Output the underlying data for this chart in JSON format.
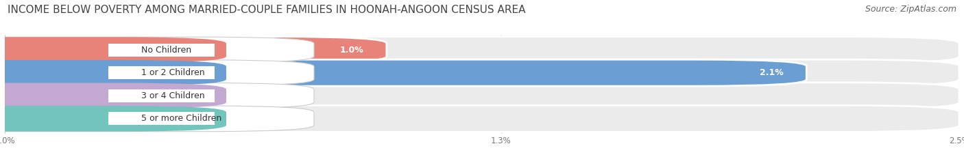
{
  "title": "INCOME BELOW POVERTY AMONG MARRIED-COUPLE FAMILIES IN HOONAH-ANGOON CENSUS AREA",
  "source": "Source: ZipAtlas.com",
  "categories": [
    "No Children",
    "1 or 2 Children",
    "3 or 4 Children",
    "5 or more Children"
  ],
  "values": [
    1.0,
    2.1,
    0.0,
    0.0
  ],
  "bar_colors": [
    "#e8837a",
    "#6b9fd4",
    "#c3a8d1",
    "#72c5bc"
  ],
  "xlim": [
    0,
    2.5
  ],
  "xticks": [
    0.0,
    1.3,
    2.5
  ],
  "xtick_labels": [
    "0.0%",
    "1.3%",
    "2.5%"
  ],
  "bg_color": "#ffffff",
  "bar_bg_color": "#ebebeb",
  "title_fontsize": 11,
  "source_fontsize": 9,
  "bar_label_fontsize": 9,
  "category_fontsize": 9,
  "bar_height": 0.58,
  "value_inside_threshold": 0.8
}
